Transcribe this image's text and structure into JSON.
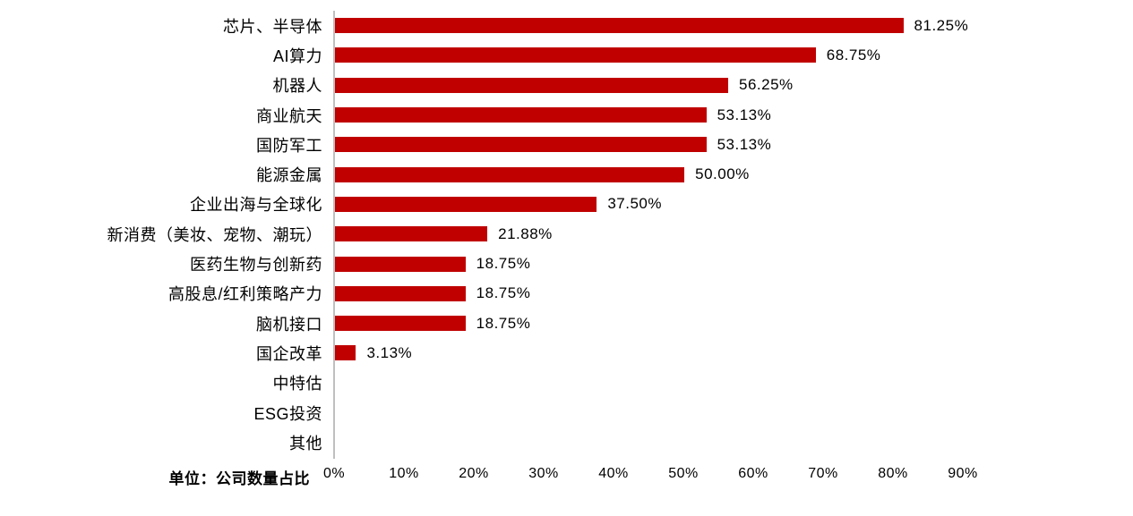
{
  "chart_data": {
    "type": "bar",
    "orientation": "horizontal",
    "title": "",
    "xlabel": "",
    "ylabel": "",
    "unit_note": "单位：公司数量占比",
    "categories": [
      "芯片、半导体",
      "AI算力",
      "机器人",
      "商业航天",
      "国防军工",
      "能源金属",
      "企业出海与全球化",
      "新消费（美妆、宠物、潮玩）",
      "医药生物与创新药",
      "高股息/红利策略产力",
      "脑机接口",
      "国企改革",
      "中特估",
      "ESG投资",
      "其他"
    ],
    "values": [
      81.25,
      68.75,
      56.25,
      53.13,
      53.13,
      50.0,
      37.5,
      21.88,
      18.75,
      18.75,
      18.75,
      3.13,
      0,
      0,
      0
    ],
    "value_labels": [
      "81.25%",
      "68.75%",
      "56.25%",
      "53.13%",
      "53.13%",
      "50.00%",
      "37.50%",
      "21.88%",
      "18.75%",
      "18.75%",
      "18.75%",
      "3.13%",
      "",
      "",
      ""
    ],
    "xlim": [
      0,
      90
    ],
    "x_ticks": [
      "0%",
      "10%",
      "20%",
      "30%",
      "40%",
      "50%",
      "60%",
      "70%",
      "80%",
      "90%"
    ],
    "grid": false,
    "legend_position": "none",
    "bar_color": "#c00000",
    "axis_line_color": "#bfbfbf",
    "text_color": "#000000"
  }
}
